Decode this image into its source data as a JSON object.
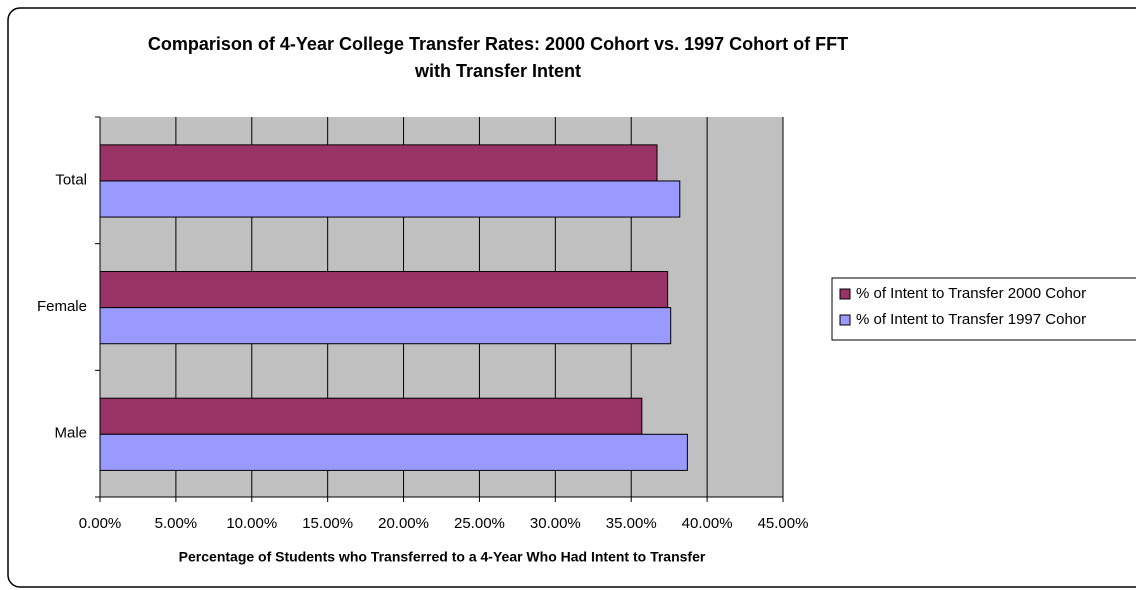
{
  "chart_data": {
    "type": "hbar",
    "title": [
      "Comparison of 4-Year College Transfer Rates: 2000 Cohort vs. 1997 Cohort of FFT",
      "with Transfer Intent"
    ],
    "x_label": "Percentage of Students who Transferred to a 4-Year Who Had Intent to Transfer",
    "categories": [
      "Total",
      "Female",
      "Male"
    ],
    "series": [
      {
        "name": "% of Intent to Transfer 2000 Cohor",
        "color": "#993366",
        "values": [
          36.7,
          37.4,
          35.7
        ]
      },
      {
        "name": "% of Intent to Transfer 1997 Cohor",
        "color": "#9999ff",
        "values": [
          38.2,
          37.6,
          38.7
        ]
      }
    ],
    "xlim": [
      0,
      45
    ],
    "xticks": [
      {
        "value": 0,
        "label": "0.00%"
      },
      {
        "value": 5,
        "label": "5.00%"
      },
      {
        "value": 10,
        "label": "10.00%"
      },
      {
        "value": 15,
        "label": "15.00%"
      },
      {
        "value": 20,
        "label": "20.00%"
      },
      {
        "value": 25,
        "label": "25.00%"
      },
      {
        "value": 30,
        "label": "30.00%"
      },
      {
        "value": 35,
        "label": "35.00%"
      },
      {
        "value": 40,
        "label": "40.00%"
      },
      {
        "value": 45,
        "label": "45.00%"
      }
    ],
    "grid": true,
    "legend": "right"
  }
}
